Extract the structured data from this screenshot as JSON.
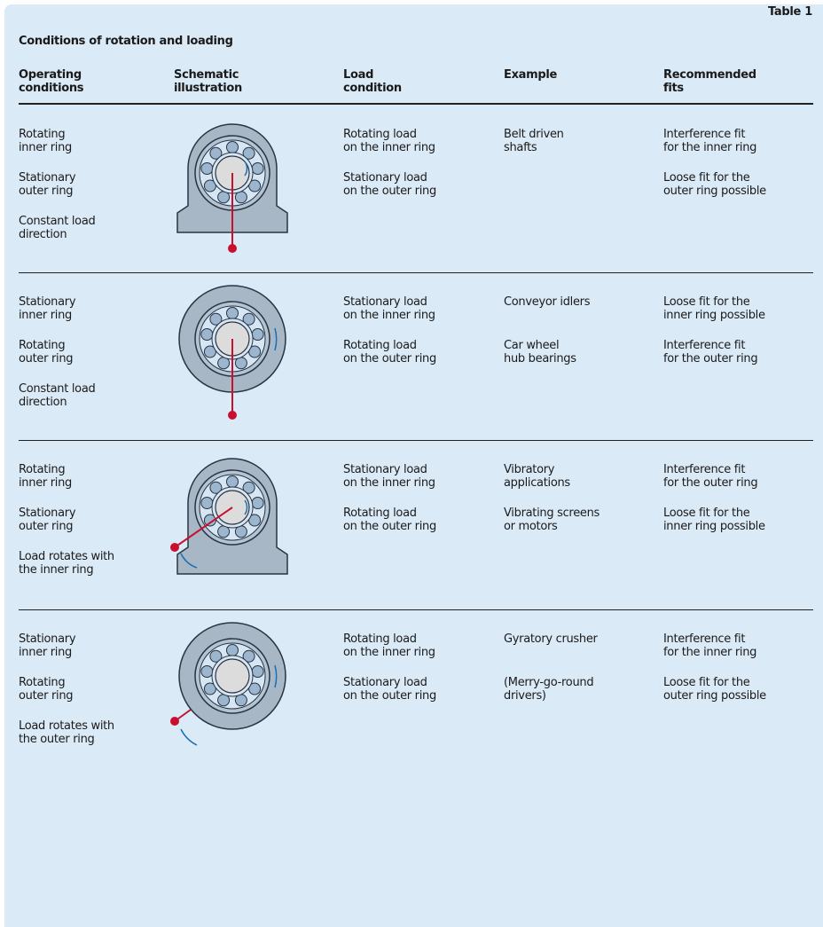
{
  "label": "Table 1",
  "title": "Conditions of rotation and loading",
  "table": {
    "header": [
      [
        "Operating",
        "conditions"
      ],
      [
        "Schematic",
        "illustration"
      ],
      [
        "Load",
        "condition"
      ],
      [
        "Example"
      ],
      [
        "Recommended",
        "fits"
      ]
    ],
    "rows": [
      {
        "operating": [
          [
            "Rotating",
            "inner ring"
          ],
          [
            "Stationary",
            "outer ring"
          ],
          [
            "Constant load",
            "direction"
          ]
        ],
        "load": [
          [
            "Rotating load",
            "on the inner ring"
          ],
          [
            "Stationary load",
            "on the outer ring"
          ]
        ],
        "example": [
          [
            "Belt driven",
            "shafts"
          ]
        ],
        "fits": [
          [
            "Interference fit",
            "for the inner ring"
          ],
          [
            "Loose fit for the",
            "outer ring possible"
          ]
        ]
      },
      {
        "operating": [
          [
            "Stationary",
            "inner ring"
          ],
          [
            "Rotating",
            "outer ring"
          ],
          [
            "Constant load",
            "direction"
          ]
        ],
        "load": [
          [
            "Stationary load",
            "on the inner ring"
          ],
          [
            "Rotating load",
            "on the outer ring"
          ]
        ],
        "example": [
          [
            "Conveyor idlers"
          ],
          [
            "Car wheel",
            "hub bearings"
          ]
        ],
        "fits": [
          [
            "Loose fit for the",
            "inner ring possible"
          ],
          [
            "Interference fit",
            "for the outer ring"
          ]
        ]
      },
      {
        "operating": [
          [
            "Rotating",
            "inner ring"
          ],
          [
            "Stationary",
            "outer ring"
          ],
          [
            "Load rotates with",
            "the inner ring"
          ]
        ],
        "load": [
          [
            "Stationary load",
            "on the inner ring"
          ],
          [
            "Rotating load",
            "on the outer ring"
          ]
        ],
        "example": [
          [
            "Vibratory",
            "applications"
          ],
          [
            "Vibrating screens",
            "or motors"
          ]
        ],
        "fits": [
          [
            "Interference fit",
            "for the outer ring"
          ],
          [
            "Loose fit for the",
            "inner ring possible"
          ]
        ]
      },
      {
        "operating": [
          [
            "Stationary",
            "inner ring"
          ],
          [
            "Rotating",
            "outer ring"
          ],
          [
            "Load rotates with",
            "the outer ring"
          ]
        ],
        "load": [
          [
            "Rotating load",
            "on the inner ring"
          ],
          [
            "Stationary load",
            "on the outer ring"
          ]
        ],
        "example": [
          [
            "Gyratory crusher"
          ],
          [
            "(Merry-go-round",
            "drivers)"
          ]
        ],
        "fits": [
          [
            "Interference fit",
            "for the inner ring"
          ],
          [
            "Loose fit for the",
            "outer ring possible"
          ]
        ]
      }
    ]
  }
}
